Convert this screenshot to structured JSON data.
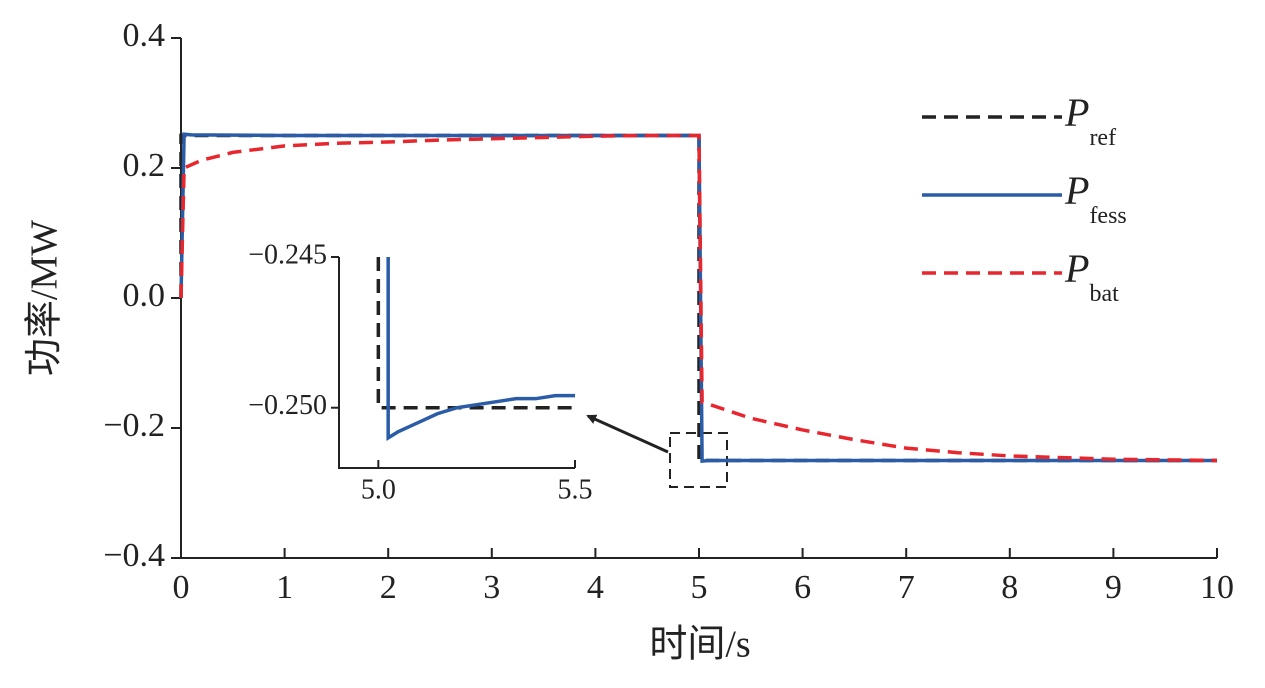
{
  "chart_data": [
    {
      "type": "line",
      "xlabel": "时间/s",
      "ylabel": "功率/MW",
      "xlim": [
        0,
        10
      ],
      "ylim": [
        -0.4,
        0.4
      ],
      "xticks": [
        0,
        1,
        2,
        3,
        4,
        5,
        6,
        7,
        8,
        9,
        10
      ],
      "yticks": [
        {
          "value": -0.4,
          "label": "−0.4"
        },
        {
          "value": -0.2,
          "label": "−0.2"
        },
        {
          "value": 0,
          "label": "0.0"
        },
        0.2,
        0.4
      ],
      "legend": "upper right",
      "series": [
        {
          "name": "P",
          "name_sub": "ref",
          "color": "#222222",
          "dash": true,
          "x": [
            0,
            0,
            5,
            5,
            10
          ],
          "values": [
            0,
            0.25,
            0.25,
            -0.25,
            -0.25
          ]
        },
        {
          "name": "P",
          "name_sub": "fess",
          "color": "#2a5ca8",
          "dash": false,
          "x": [
            0,
            0.03,
            0.1,
            1,
            2,
            3,
            4,
            5,
            5.03,
            5.1,
            10
          ],
          "values": [
            0,
            0.252,
            0.251,
            0.25,
            0.25,
            0.25,
            0.25,
            0.25,
            -0.251,
            -0.25,
            -0.25
          ]
        },
        {
          "name": "P",
          "name_sub": "bat",
          "color": "#e8262d",
          "dash": true,
          "x": [
            0,
            0.03,
            0.2,
            0.5,
            1,
            1.5,
            2,
            2.5,
            3,
            3.5,
            4,
            4.5,
            5,
            5.03,
            5.5,
            6,
            6.5,
            7,
            7.5,
            8,
            9,
            10
          ],
          "values": [
            0,
            0.2,
            0.212,
            0.224,
            0.234,
            0.238,
            0.24,
            0.243,
            0.245,
            0.247,
            0.249,
            0.25,
            0.25,
            -0.16,
            -0.185,
            -0.203,
            -0.218,
            -0.231,
            -0.238,
            -0.243,
            -0.248,
            -0.25
          ]
        }
      ]
    },
    {
      "type": "line",
      "xlim": [
        4.9,
        5.5
      ],
      "ylim": [
        -0.252,
        -0.245
      ],
      "xticks": [
        {
          "value": 5,
          "label": "5.0"
        },
        5.5
      ],
      "yticks": [
        {
          "value": -0.25,
          "label": "−0.250"
        },
        {
          "value": -0.245,
          "label": "−0.245"
        }
      ],
      "series": [
        {
          "color": "#222222",
          "dash": true,
          "x": [
            5,
            5,
            5.5
          ],
          "values": [
            -0.245,
            -0.25,
            -0.25
          ]
        },
        {
          "color": "#2a5ca8",
          "dash": false,
          "x": [
            5.025,
            5.025,
            5.05,
            5.1,
            5.15,
            5.2,
            5.25,
            5.3,
            5.35,
            5.4,
            5.45,
            5.5
          ],
          "values": [
            -0.245,
            -0.251,
            -0.2508,
            -0.2505,
            -0.2502,
            -0.25,
            -0.2499,
            -0.2498,
            -0.2497,
            -0.2497,
            -0.2496,
            -0.2496
          ]
        }
      ]
    }
  ]
}
